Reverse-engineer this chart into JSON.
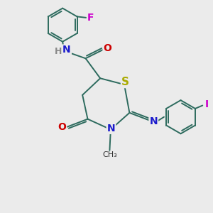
{
  "background_color": "#ebebeb",
  "bond_color": "#2d6b5e",
  "atom_colors": {
    "N": "#1a1acc",
    "O": "#cc0000",
    "S": "#aaaa00",
    "F": "#cc00cc",
    "I": "#cc00cc",
    "H": "#888888",
    "C": "#000000"
  },
  "font_size": 9,
  "linewidth": 1.4
}
